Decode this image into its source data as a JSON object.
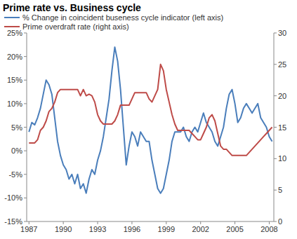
{
  "chart_data": {
    "type": "line",
    "title": "Prime rate vs. Business cycle",
    "legend": "upper left",
    "grid": false,
    "x": [
      1987.0,
      1987.25,
      1987.5,
      1987.75,
      1988.0,
      1988.25,
      1988.5,
      1988.75,
      1989.0,
      1989.25,
      1989.5,
      1989.75,
      1990.0,
      1990.25,
      1990.5,
      1990.75,
      1991.0,
      1991.25,
      1991.5,
      1991.75,
      1992.0,
      1992.25,
      1992.5,
      1992.75,
      1993.0,
      1993.25,
      1993.5,
      1993.75,
      1994.0,
      1994.25,
      1994.5,
      1994.75,
      1995.0,
      1995.25,
      1995.5,
      1995.75,
      1996.0,
      1996.25,
      1996.5,
      1996.75,
      1997.0,
      1997.25,
      1997.5,
      1997.75,
      1998.0,
      1998.25,
      1998.5,
      1998.75,
      1999.0,
      1999.25,
      1999.5,
      1999.75,
      2000.0,
      2000.25,
      2000.5,
      2000.75,
      2001.0,
      2001.25,
      2001.5,
      2001.75,
      2002.0,
      2002.25,
      2002.5,
      2002.75,
      2003.0,
      2003.25,
      2003.5,
      2003.75,
      2004.0,
      2004.25,
      2004.5,
      2004.75,
      2005.0,
      2005.25,
      2005.5,
      2005.75,
      2006.0,
      2006.25,
      2006.5,
      2006.75,
      2007.0,
      2007.25,
      2007.5,
      2007.75,
      2008.0,
      2008.25
    ],
    "xlim": [
      1986.8,
      2008.4
    ],
    "xticks": [
      1987,
      1990,
      1993,
      1996,
      1999,
      2002,
      2005,
      2008
    ],
    "ylim": [
      -15,
      25
    ],
    "yticks": [
      {
        "value": -15,
        "label": "-15%"
      },
      {
        "value": -10,
        "label": "-10%"
      },
      {
        "value": -5,
        "label": "-5%"
      },
      {
        "value": 0,
        "label": "0%"
      },
      {
        "value": 5,
        "label": "5%"
      },
      {
        "value": 10,
        "label": "10%"
      },
      {
        "value": 15,
        "label": "15%"
      },
      {
        "value": 20,
        "label": "20%"
      },
      {
        "value": 25,
        "label": "25%"
      }
    ],
    "y2lim": [
      0,
      30
    ],
    "y2ticks": [
      0,
      5,
      10,
      15,
      20,
      25,
      30
    ],
    "series": [
      {
        "name": "% Change in coincident buseness cycle indicator (left axis)",
        "color": "#4a7ebb",
        "axis": "y",
        "values": [
          4,
          6,
          5.5,
          7,
          9,
          12,
          15,
          14,
          12,
          7,
          2,
          -1,
          -3,
          -4,
          -6,
          -5,
          -7,
          -5,
          -8,
          -7,
          -9,
          -6,
          -4,
          -5,
          -2,
          0,
          3,
          7,
          11,
          17,
          22,
          19,
          13,
          5,
          -3,
          1,
          4,
          3,
          1,
          4,
          3,
          2,
          2,
          -2,
          -5,
          -8,
          -9,
          -8,
          -5,
          -2,
          2,
          4,
          4,
          4,
          5,
          3,
          2,
          4,
          5,
          4,
          6,
          8,
          6,
          5,
          4,
          2,
          1,
          3,
          5,
          9,
          12,
          13,
          10,
          6,
          7,
          9,
          10,
          9,
          8,
          9,
          10,
          7,
          6,
          5,
          3,
          2
        ]
      },
      {
        "name": "Prime overdraft rate (right axis)",
        "color": "#be4b48",
        "axis": "y2",
        "values": [
          12.5,
          12.5,
          12.5,
          13,
          14.5,
          15,
          16,
          17.5,
          18,
          19,
          20.5,
          21,
          21,
          21,
          21,
          21,
          21,
          21,
          20,
          21,
          20,
          20.25,
          20,
          19,
          17,
          16,
          15.5,
          15.5,
          15.5,
          15.5,
          16,
          17,
          18.5,
          18.5,
          18.5,
          18.5,
          19.5,
          20.5,
          20.5,
          20.5,
          20.5,
          20.5,
          19.5,
          19,
          20,
          21,
          25,
          24,
          21,
          19,
          17,
          15.5,
          14.5,
          14.5,
          14.5,
          14.5,
          14.5,
          14,
          13.5,
          13,
          13,
          14,
          15,
          16.5,
          17,
          16,
          14,
          12,
          11.5,
          11.5,
          11,
          10.5,
          10.5,
          10.5,
          10.5,
          10.5,
          10.5,
          11,
          11.5,
          12,
          12.5,
          13,
          13.5,
          14,
          14.5,
          15
        ]
      }
    ]
  }
}
